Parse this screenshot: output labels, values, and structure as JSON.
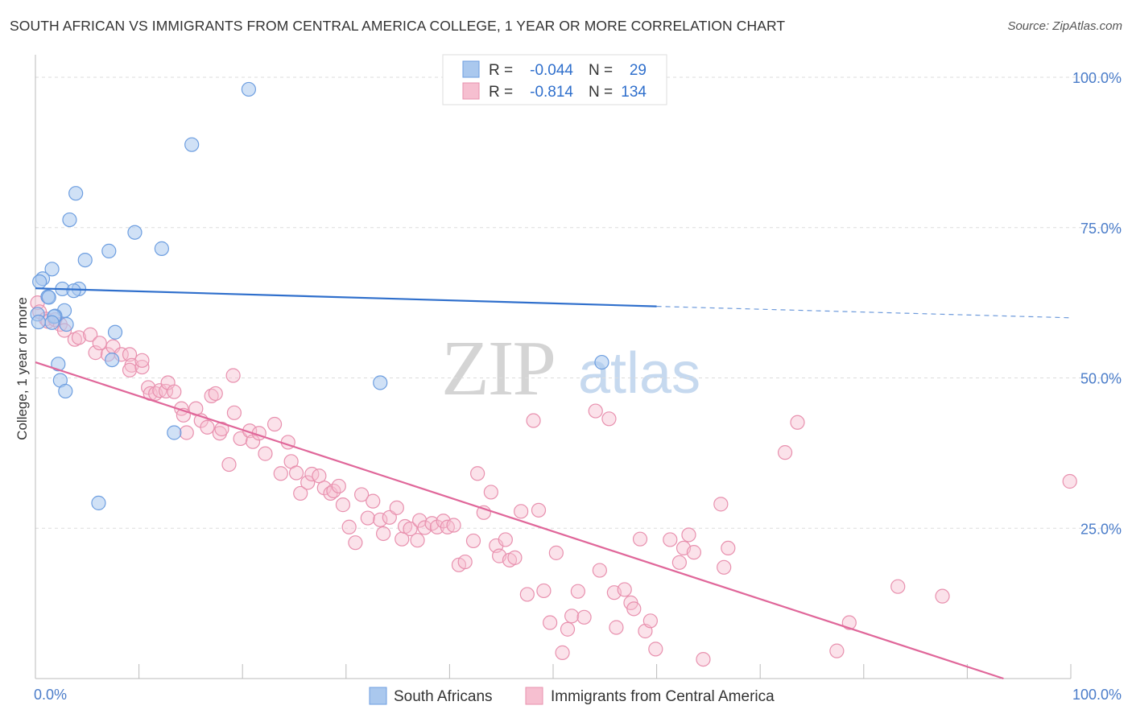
{
  "title": "SOUTH AFRICAN VS IMMIGRANTS FROM CENTRAL AMERICA COLLEGE, 1 YEAR OR MORE CORRELATION CHART",
  "source": "Source: ZipAtlas.com",
  "watermark": {
    "zip": "ZIP",
    "atlas": "atlas"
  },
  "legend_top": [
    {
      "r_label": "R =",
      "r_value": "-0.044",
      "n_label": "N =",
      "n_value": "29"
    },
    {
      "r_label": "R =",
      "r_value": "-0.814",
      "n_label": "N =",
      "n_value": "134"
    }
  ],
  "legend_bottom": [
    "South Africans",
    "Immigrants from Central America"
  ],
  "colors": {
    "blue_fill": "#aac8ee",
    "blue_stroke": "#6d9ee0",
    "blue_line": "#2f6fcc",
    "pink_fill": "#f6bfd0",
    "pink_stroke": "#e890ae",
    "pink_line": "#e0679a",
    "tick_label": "#4a7cc9",
    "grid": "#dddddd"
  },
  "chart_data": {
    "type": "scatter",
    "title": "SOUTH AFRICAN VS IMMIGRANTS FROM CENTRAL AMERICA COLLEGE, 1 YEAR OR MORE CORRELATION CHART",
    "xlabel": "",
    "ylabel": "College, 1 year or more",
    "xlim": [
      0,
      100
    ],
    "ylim": [
      0,
      100
    ],
    "x_tick_labels": [
      "0.0%",
      "100.0%"
    ],
    "y_tick_labels": [
      "100.0%",
      "75.0%",
      "50.0%",
      "25.0%"
    ],
    "y_ticks": [
      100,
      75,
      50,
      25
    ],
    "grid": true,
    "legend": "top-center",
    "series": [
      {
        "name": "South Africans",
        "color": "#aac8ee",
        "points": [
          [
            20.6,
            98.0
          ],
          [
            15.1,
            88.8
          ],
          [
            3.9,
            80.7
          ],
          [
            3.3,
            76.3
          ],
          [
            9.6,
            74.2
          ],
          [
            12.2,
            71.5
          ],
          [
            7.1,
            71.1
          ],
          [
            4.8,
            69.6
          ],
          [
            1.6,
            68.1
          ],
          [
            0.7,
            66.5
          ],
          [
            0.4,
            66.0
          ],
          [
            4.2,
            64.8
          ],
          [
            2.6,
            64.8
          ],
          [
            3.7,
            64.5
          ],
          [
            1.2,
            63.5
          ],
          [
            1.3,
            63.4
          ],
          [
            2.8,
            61.2
          ],
          [
            0.2,
            60.6
          ],
          [
            1.9,
            60.3
          ],
          [
            1.8,
            60.2
          ],
          [
            0.3,
            59.3
          ],
          [
            1.6,
            59.2
          ],
          [
            3.0,
            58.9
          ],
          [
            7.7,
            57.6
          ],
          [
            7.4,
            53.0
          ],
          [
            2.2,
            52.3
          ],
          [
            2.4,
            49.6
          ],
          [
            2.9,
            47.8
          ],
          [
            33.3,
            49.2
          ],
          [
            54.7,
            52.6
          ],
          [
            13.4,
            40.9
          ],
          [
            6.1,
            29.2
          ]
        ],
        "r": -0.044,
        "n": 29,
        "trend": {
          "x": [
            0,
            60
          ],
          "y": [
            64.9,
            61.9
          ]
        },
        "trend_dashed": {
          "x": [
            60,
            100
          ],
          "y": [
            61.9,
            60.0
          ]
        }
      },
      {
        "name": "Immigrants from Central America",
        "color": "#f6bfd0",
        "points": [
          [
            0.2,
            62.5
          ],
          [
            0.4,
            61.0
          ],
          [
            1.0,
            59.8
          ],
          [
            1.2,
            59.4
          ],
          [
            1.9,
            59.7
          ],
          [
            2.4,
            58.9
          ],
          [
            2.8,
            57.9
          ],
          [
            3.8,
            56.4
          ],
          [
            4.2,
            56.7
          ],
          [
            5.3,
            57.2
          ],
          [
            5.8,
            54.2
          ],
          [
            6.2,
            55.8
          ],
          [
            7.0,
            53.9
          ],
          [
            7.5,
            55.2
          ],
          [
            8.3,
            53.9
          ],
          [
            9.1,
            53.9
          ],
          [
            9.3,
            52.1
          ],
          [
            9.1,
            51.3
          ],
          [
            10.3,
            51.8
          ],
          [
            10.3,
            52.9
          ],
          [
            10.9,
            48.4
          ],
          [
            11.1,
            47.4
          ],
          [
            11.6,
            47.4
          ],
          [
            12.0,
            47.9
          ],
          [
            12.6,
            47.8
          ],
          [
            12.8,
            49.2
          ],
          [
            13.4,
            47.7
          ],
          [
            14.1,
            44.9
          ],
          [
            14.3,
            43.8
          ],
          [
            14.6,
            40.9
          ],
          [
            15.5,
            44.9
          ],
          [
            16.0,
            42.9
          ],
          [
            16.6,
            41.8
          ],
          [
            17.0,
            47.0
          ],
          [
            17.4,
            47.4
          ],
          [
            17.8,
            40.8
          ],
          [
            18.0,
            41.5
          ],
          [
            18.7,
            35.6
          ],
          [
            19.1,
            50.4
          ],
          [
            19.2,
            44.2
          ],
          [
            19.8,
            39.9
          ],
          [
            20.7,
            41.2
          ],
          [
            21.0,
            39.4
          ],
          [
            21.6,
            40.8
          ],
          [
            22.2,
            37.4
          ],
          [
            23.1,
            42.3
          ],
          [
            23.7,
            34.1
          ],
          [
            24.4,
            39.3
          ],
          [
            24.7,
            36.1
          ],
          [
            25.2,
            34.2
          ],
          [
            25.6,
            30.8
          ],
          [
            26.3,
            32.6
          ],
          [
            26.7,
            34.0
          ],
          [
            27.4,
            33.7
          ],
          [
            27.9,
            31.7
          ],
          [
            28.5,
            30.8
          ],
          [
            28.8,
            31.2
          ],
          [
            29.3,
            32.0
          ],
          [
            29.7,
            28.9
          ],
          [
            30.3,
            25.2
          ],
          [
            30.9,
            22.6
          ],
          [
            31.5,
            30.6
          ],
          [
            32.1,
            26.7
          ],
          [
            32.6,
            29.5
          ],
          [
            33.3,
            26.4
          ],
          [
            33.6,
            24.1
          ],
          [
            34.2,
            26.8
          ],
          [
            34.9,
            28.4
          ],
          [
            35.4,
            23.2
          ],
          [
            35.7,
            25.3
          ],
          [
            36.2,
            24.9
          ],
          [
            36.9,
            23.0
          ],
          [
            37.1,
            26.3
          ],
          [
            37.6,
            25.1
          ],
          [
            38.3,
            25.8
          ],
          [
            38.8,
            25.2
          ],
          [
            39.4,
            26.2
          ],
          [
            39.8,
            25.2
          ],
          [
            40.4,
            25.5
          ],
          [
            40.9,
            18.9
          ],
          [
            41.5,
            19.4
          ],
          [
            42.3,
            22.9
          ],
          [
            42.7,
            34.1
          ],
          [
            43.3,
            27.6
          ],
          [
            44.0,
            31.0
          ],
          [
            44.5,
            22.1
          ],
          [
            44.8,
            20.4
          ],
          [
            45.4,
            23.1
          ],
          [
            45.8,
            19.7
          ],
          [
            46.3,
            20.1
          ],
          [
            46.9,
            27.8
          ],
          [
            47.5,
            14.0
          ],
          [
            48.1,
            42.9
          ],
          [
            48.6,
            28.0
          ],
          [
            49.1,
            14.6
          ],
          [
            49.7,
            9.3
          ],
          [
            50.3,
            20.9
          ],
          [
            50.9,
            4.3
          ],
          [
            51.4,
            8.2
          ],
          [
            51.8,
            10.4
          ],
          [
            52.4,
            14.5
          ],
          [
            53.0,
            10.2
          ],
          [
            54.1,
            44.5
          ],
          [
            54.5,
            18.0
          ],
          [
            55.4,
            43.2
          ],
          [
            55.9,
            14.3
          ],
          [
            56.1,
            8.5
          ],
          [
            56.9,
            14.8
          ],
          [
            57.5,
            12.6
          ],
          [
            57.8,
            11.6
          ],
          [
            58.4,
            23.2
          ],
          [
            58.9,
            7.9
          ],
          [
            59.4,
            9.6
          ],
          [
            59.9,
            4.9
          ],
          [
            61.3,
            23.1
          ],
          [
            62.2,
            19.3
          ],
          [
            62.6,
            21.7
          ],
          [
            63.1,
            23.9
          ],
          [
            63.6,
            21.0
          ],
          [
            64.5,
            3.2
          ],
          [
            66.2,
            29.0
          ],
          [
            66.5,
            18.5
          ],
          [
            66.9,
            21.7
          ],
          [
            72.4,
            37.6
          ],
          [
            73.6,
            42.6
          ],
          [
            77.4,
            4.6
          ],
          [
            78.6,
            9.3
          ],
          [
            83.3,
            15.3
          ],
          [
            87.6,
            13.7
          ],
          [
            99.9,
            32.8
          ]
        ],
        "r": -0.814,
        "n": 134,
        "trend": {
          "x": [
            0,
            93.5
          ],
          "y": [
            52.6,
            0.0
          ]
        }
      }
    ]
  }
}
